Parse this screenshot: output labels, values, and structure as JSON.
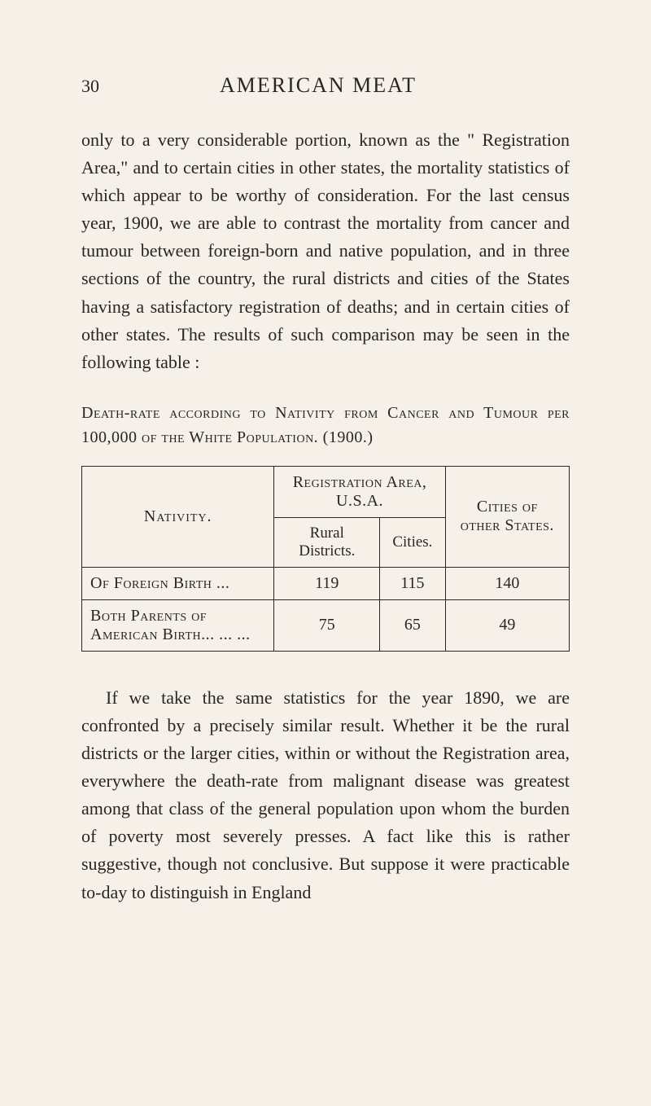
{
  "header": {
    "page_number": "30",
    "book_title": "AMERICAN MEAT"
  },
  "paragraph1": "only to a very considerable portion, known as the \" Registration Area,\" and to certain cities in other states, the mortality statistics of which appear to be worthy of consideration. For the last census year, 1900, we are able to contrast the mortality from cancer and tumour between foreign-born and native population, and in three sections of the country, the rural districts and cities of the States having a satisfactory registration of deaths; and in certain cities of other states. The results of such comparison may be seen in the following table :",
  "table_title": "Death-rate according to Nativity from Cancer and Tumour per 100,000 of the White Population. (1900.)",
  "table": {
    "headers": {
      "nativity": "Nativity.",
      "registration_area": "Registration Area, U.S.A.",
      "rural": "Rural Districts.",
      "cities": "Cities.",
      "other_cities": "Cities of other States."
    },
    "rows": [
      {
        "label": "Of Foreign Birth   ...",
        "rural": "119",
        "cities": "115",
        "other": "140"
      },
      {
        "label": "Both Parents of American Birth...   ...   ...",
        "rural": "75",
        "cities": "65",
        "other": "49"
      }
    ]
  },
  "paragraph2": "If we take the same statistics for the year 1890, we are confronted by a precisely similar result. Whether it be the rural districts or the larger cities, within or without the Registration area, everywhere the death-rate from malignant disease was greatest among that class of the general population upon whom the burden of poverty most severely presses. A fact like this is rather suggestive, though not conclusive. But suppose it were practicable to-day to distinguish in England"
}
